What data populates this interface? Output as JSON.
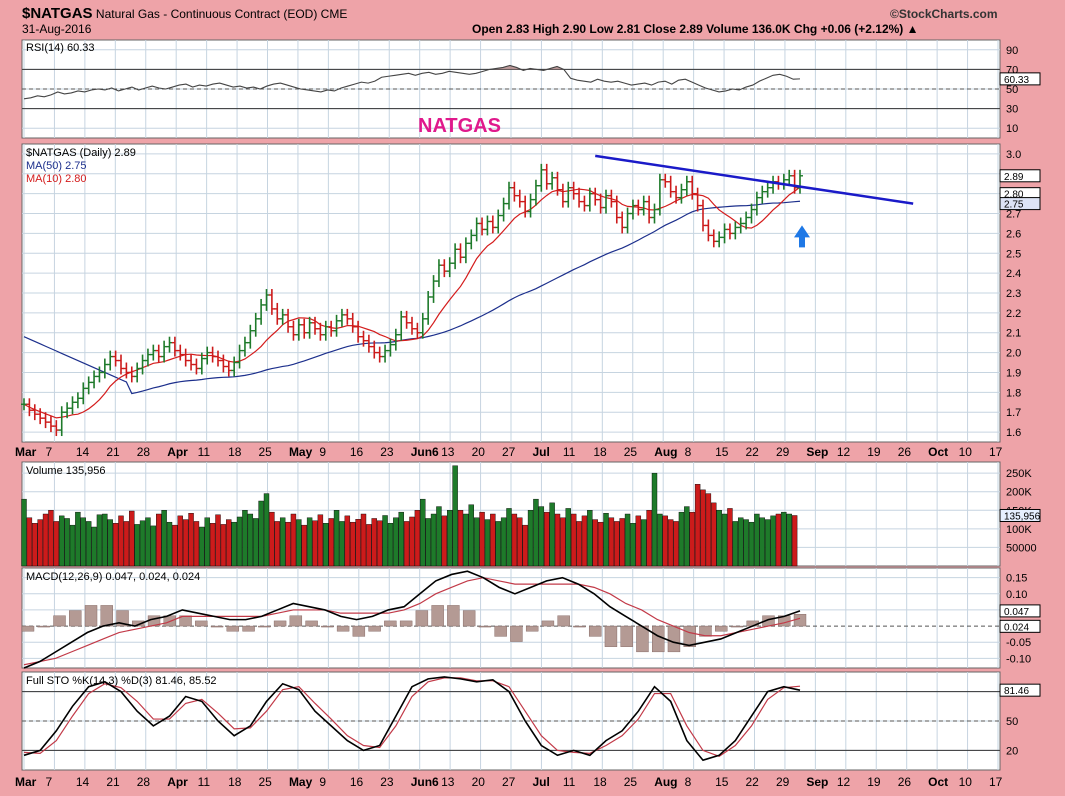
{
  "header": {
    "symbol": "$NATGAS",
    "name": "Natural Gas - Continuous Contract (EOD)",
    "exchange": "CME",
    "date": "31-Aug-2016",
    "brand": "©StockCharts.com",
    "ohlc": "Open 2.83  High 2.90  Low 2.81  Close 2.89  Volume 136.0K  Chg +0.06 (+2.12%) ▲"
  },
  "colors": {
    "panel_bg": "#ffffff",
    "page_bg": "#eea3a8",
    "grid": "#c6d4e0",
    "up": "#1e7a2a",
    "down": "#cc1b1b",
    "ma50": "#1c2f8c",
    "ma10": "#d41c1c",
    "trendline": "#1a1ac8",
    "annotation": "#e0198c",
    "arrow": "#1e78e6"
  },
  "annotation": "NATGAS",
  "x_axis_labels": [
    "Mar",
    "7",
    "14",
    "21",
    "28",
    "Apr",
    "11",
    "18",
    "25",
    "May",
    "9",
    "16",
    "23",
    "Jun6",
    "13",
    "20",
    "27",
    "Jul",
    "11",
    "18",
    "25",
    "Aug",
    "8",
    "15",
    "22",
    "29",
    "Sep",
    "12",
    "19",
    "26",
    "Oct",
    "10",
    "17"
  ],
  "chart_data": [
    {
      "type": "line",
      "title": "RSI(14) 60.33",
      "series": [
        {
          "name": "RSI(14)",
          "values": [
            40,
            41,
            43,
            42,
            44,
            47,
            45,
            46,
            48,
            47,
            49,
            50,
            49,
            51,
            48,
            50,
            52,
            49,
            51,
            53,
            51,
            50,
            52,
            54,
            55,
            52,
            54,
            53,
            55,
            56,
            54,
            52,
            53,
            51,
            52,
            50,
            53,
            55,
            56,
            54,
            52,
            50,
            49,
            48,
            47,
            49,
            48,
            51,
            53,
            55,
            57,
            56,
            58,
            62,
            63,
            64,
            65,
            66,
            64,
            66,
            67,
            65,
            66,
            68,
            67,
            66,
            65,
            66,
            68,
            70,
            71,
            72,
            74,
            72,
            69,
            71,
            70,
            69,
            71,
            73,
            70,
            61,
            59,
            58,
            57,
            60,
            58,
            57,
            58,
            56,
            54,
            55,
            56,
            54,
            57,
            58,
            55,
            59,
            60,
            57,
            54,
            51,
            49,
            47,
            48,
            50,
            49,
            52,
            54,
            58,
            61,
            64,
            65,
            63,
            60,
            60.33
          ]
        }
      ],
      "ylim": [
        0,
        100
      ],
      "ticks": [
        10,
        30,
        50,
        70,
        90
      ],
      "levels": [
        30,
        70
      ],
      "last_value_label": "60.33"
    },
    {
      "type": "bar",
      "title": "$NATGAS (Daily) 2.89",
      "ohlc_style": "hlc-bars",
      "legend": [
        "MA(50) 2.75",
        "MA(10) 2.80"
      ],
      "ylim": [
        1.55,
        3.05
      ],
      "ticks": [
        1.6,
        1.7,
        1.8,
        1.9,
        2.0,
        2.1,
        2.2,
        2.3,
        2.4,
        2.5,
        2.6,
        2.7,
        2.8,
        2.9,
        3.0
      ],
      "close": [
        1.74,
        1.71,
        1.69,
        1.67,
        1.65,
        1.63,
        1.61,
        1.7,
        1.72,
        1.75,
        1.77,
        1.82,
        1.85,
        1.88,
        1.9,
        1.94,
        1.98,
        1.96,
        1.92,
        1.9,
        1.88,
        1.92,
        1.96,
        1.99,
        2.01,
        1.98,
        2.03,
        2.05,
        2.01,
        1.99,
        1.96,
        1.94,
        1.92,
        1.97,
        2.0,
        1.98,
        1.96,
        1.93,
        1.91,
        1.95,
        2.01,
        2.05,
        2.11,
        2.17,
        2.24,
        2.29,
        2.22,
        2.17,
        2.19,
        2.13,
        2.09,
        2.14,
        2.1,
        2.15,
        2.12,
        2.09,
        2.13,
        2.11,
        2.16,
        2.19,
        2.17,
        2.13,
        2.08,
        2.06,
        2.03,
        2.0,
        1.98,
        2.01,
        2.04,
        2.09,
        2.18,
        2.15,
        2.12,
        2.1,
        2.17,
        2.28,
        2.36,
        2.44,
        2.41,
        2.45,
        2.52,
        2.48,
        2.55,
        2.59,
        2.65,
        2.62,
        2.66,
        2.63,
        2.69,
        2.75,
        2.83,
        2.79,
        2.76,
        2.71,
        2.77,
        2.84,
        2.92,
        2.85,
        2.88,
        2.82,
        2.76,
        2.83,
        2.8,
        2.76,
        2.74,
        2.8,
        2.77,
        2.73,
        2.79,
        2.76,
        2.68,
        2.63,
        2.7,
        2.74,
        2.72,
        2.76,
        2.68,
        2.72,
        2.87,
        2.86,
        2.81,
        2.78,
        2.82,
        2.86,
        2.8,
        2.74,
        2.64,
        2.59,
        2.56,
        2.58,
        2.62,
        2.6,
        2.63,
        2.65,
        2.68,
        2.72,
        2.78,
        2.81,
        2.83,
        2.86,
        2.85,
        2.87,
        2.89,
        2.83,
        2.89
      ],
      "high_low_spread": 0.06,
      "last_price_label": "2.89",
      "ma10_label": "2.80",
      "ma50_label": "2.75",
      "trendline": [
        [
          106,
          2.99
        ],
        [
          165,
          2.75
        ]
      ]
    },
    {
      "type": "bar",
      "title": "Volume 135,956",
      "ticks_labels": [
        "250K",
        "200K",
        "150K",
        "100K",
        "50000"
      ],
      "ticks_values": [
        250000,
        200000,
        150000,
        100000,
        50000
      ],
      "ylim": [
        0,
        280000
      ],
      "values": [
        180000,
        130000,
        115000,
        125000,
        140000,
        150000,
        120000,
        135000,
        128000,
        110000,
        145000,
        130000,
        120000,
        105000,
        138000,
        140000,
        125000,
        115000,
        135000,
        120000,
        148000,
        112000,
        122000,
        130000,
        108000,
        140000,
        150000,
        118000,
        110000,
        135000,
        125000,
        142000,
        120000,
        105000,
        130000,
        115000,
        138000,
        112000,
        125000,
        118000,
        132000,
        150000,
        140000,
        128000,
        175000,
        195000,
        145000,
        120000,
        130000,
        118000,
        140000,
        125000,
        110000,
        130000,
        122000,
        138000,
        115000,
        128000,
        150000,
        120000,
        135000,
        118000,
        126000,
        140000,
        112000,
        128000,
        122000,
        136000,
        115000,
        130000,
        145000,
        120000,
        132000,
        150000,
        180000,
        128000,
        140000,
        160000,
        135000,
        150000,
        270000,
        150000,
        140000,
        165000,
        130000,
        145000,
        125000,
        140000,
        120000,
        130000,
        155000,
        140000,
        130000,
        110000,
        150000,
        180000,
        160000,
        145000,
        170000,
        140000,
        130000,
        155000,
        140000,
        120000,
        135000,
        150000,
        125000,
        118000,
        142000,
        130000,
        120000,
        128000,
        140000,
        115000,
        135000,
        125000,
        150000,
        250000,
        140000,
        135000,
        125000,
        120000,
        145000,
        160000,
        145000,
        220000,
        205000,
        195000,
        170000,
        150000,
        140000,
        155000,
        120000,
        130000,
        125000,
        118000,
        140000,
        130000,
        125000,
        135000,
        140000,
        145000,
        140000,
        136000
      ],
      "last_value_label": "135,956"
    },
    {
      "type": "line",
      "title": "MACD(12,26,9) 0.047, 0.024, 0.024",
      "series": [
        {
          "name": "MACD(12,26,9)",
          "values": [
            -0.13,
            -0.11,
            -0.08,
            -0.05,
            -0.02,
            0.0,
            0.01,
            0.0,
            0.02,
            0.03,
            0.05,
            0.04,
            0.03,
            0.02,
            0.02,
            0.03,
            0.05,
            0.07,
            0.06,
            0.05,
            0.03,
            0.02,
            0.03,
            0.05,
            0.06,
            0.1,
            0.14,
            0.16,
            0.17,
            0.15,
            0.12,
            0.1,
            0.12,
            0.14,
            0.15,
            0.13,
            0.1,
            0.06,
            0.03,
            0.0,
            -0.03,
            -0.05,
            -0.06,
            -0.05,
            -0.04,
            -0.02,
            0.0,
            0.02,
            0.03,
            0.047
          ]
        },
        {
          "name": "Signal",
          "values": [
            -0.12,
            -0.11,
            -0.1,
            -0.08,
            -0.06,
            -0.04,
            -0.02,
            -0.01,
            0.0,
            0.01,
            0.03,
            0.03,
            0.03,
            0.03,
            0.03,
            0.03,
            0.04,
            0.05,
            0.05,
            0.05,
            0.04,
            0.04,
            0.04,
            0.04,
            0.05,
            0.07,
            0.1,
            0.12,
            0.14,
            0.15,
            0.14,
            0.13,
            0.13,
            0.13,
            0.13,
            0.13,
            0.12,
            0.1,
            0.07,
            0.05,
            0.02,
            0.0,
            -0.02,
            -0.03,
            -0.03,
            -0.02,
            -0.01,
            0.0,
            0.01,
            0.024
          ]
        }
      ],
      "ylim": [
        -0.13,
        0.18
      ],
      "ticks": [
        0.15,
        0.1,
        0.05,
        -0.05,
        -0.1
      ],
      "ticks_labels": [
        "0.15",
        "0.10",
        "0.05",
        "-0.05",
        "-0.10"
      ],
      "last_values": [
        "0.047",
        "0.024"
      ]
    },
    {
      "type": "line",
      "title": "Full STO %K(14,3) %D(3) 81.46, 85.52",
      "series": [
        {
          "name": "%K(14,3)",
          "values": [
            15,
            20,
            40,
            65,
            85,
            90,
            80,
            60,
            45,
            55,
            75,
            70,
            50,
            35,
            45,
            70,
            88,
            82,
            60,
            45,
            30,
            20,
            25,
            55,
            85,
            93,
            95,
            93,
            90,
            92,
            80,
            50,
            25,
            15,
            20,
            15,
            30,
            40,
            60,
            85,
            70,
            30,
            10,
            15,
            30,
            55,
            80,
            85,
            81.46
          ]
        },
        {
          "name": "%D(3)",
          "values": [
            18,
            17,
            30,
            55,
            78,
            88,
            84,
            70,
            52,
            52,
            68,
            72,
            58,
            42,
            43,
            60,
            82,
            85,
            68,
            52,
            35,
            25,
            23,
            45,
            75,
            90,
            94,
            94,
            91,
            91,
            85,
            60,
            35,
            20,
            18,
            17,
            25,
            35,
            52,
            78,
            78,
            45,
            20,
            14,
            25,
            45,
            72,
            84,
            85.52
          ]
        }
      ],
      "ylim": [
        0,
        100
      ],
      "ticks": [
        20,
        50,
        80
      ],
      "levels": [
        20,
        80
      ],
      "last_value_label": "81.46"
    }
  ]
}
